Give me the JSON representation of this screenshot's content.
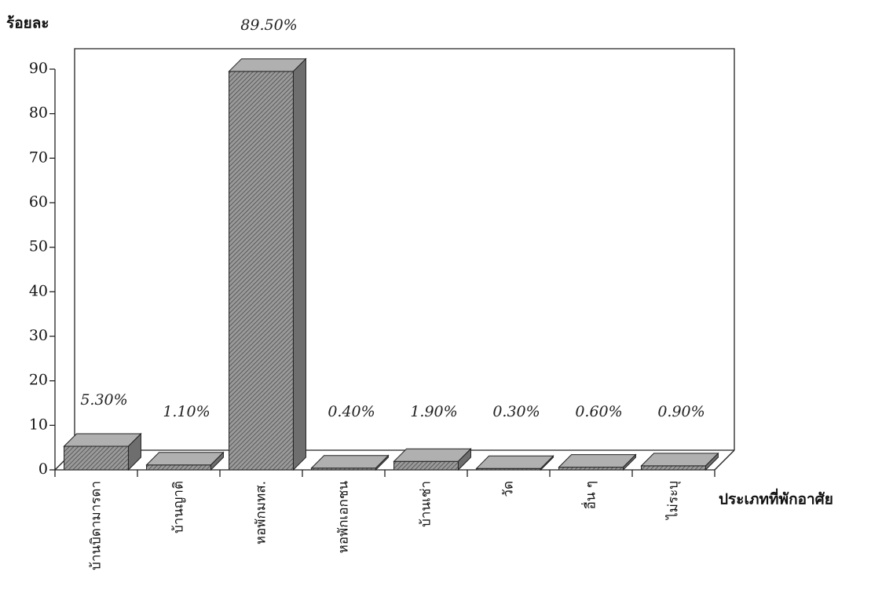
{
  "chart_data": {
    "type": "bar3d",
    "y_label": "ร้อยละ",
    "x_label": "ประเภทที่พักอาศัย",
    "categories": [
      "บ้านบิดามารดา",
      "บ้านญาติ",
      "หอพักมทส.",
      "หอพักเอกชน",
      "บ้านเช่า",
      "วัด",
      "อื่น ๆ",
      "ไม่ระบุ"
    ],
    "values": [
      5.3,
      1.1,
      89.5,
      0.4,
      1.9,
      0.3,
      0.6,
      0.9
    ],
    "value_labels": [
      "5.30%",
      "1.10%",
      "89.50%",
      "0.40%",
      "1.90%",
      "0.30%",
      "0.60%",
      "0.90%"
    ],
    "color": "#8a8a8a",
    "ylim": [
      0,
      90
    ],
    "yticks": [
      0,
      10,
      20,
      30,
      40,
      50,
      60,
      70,
      80,
      90
    ]
  }
}
